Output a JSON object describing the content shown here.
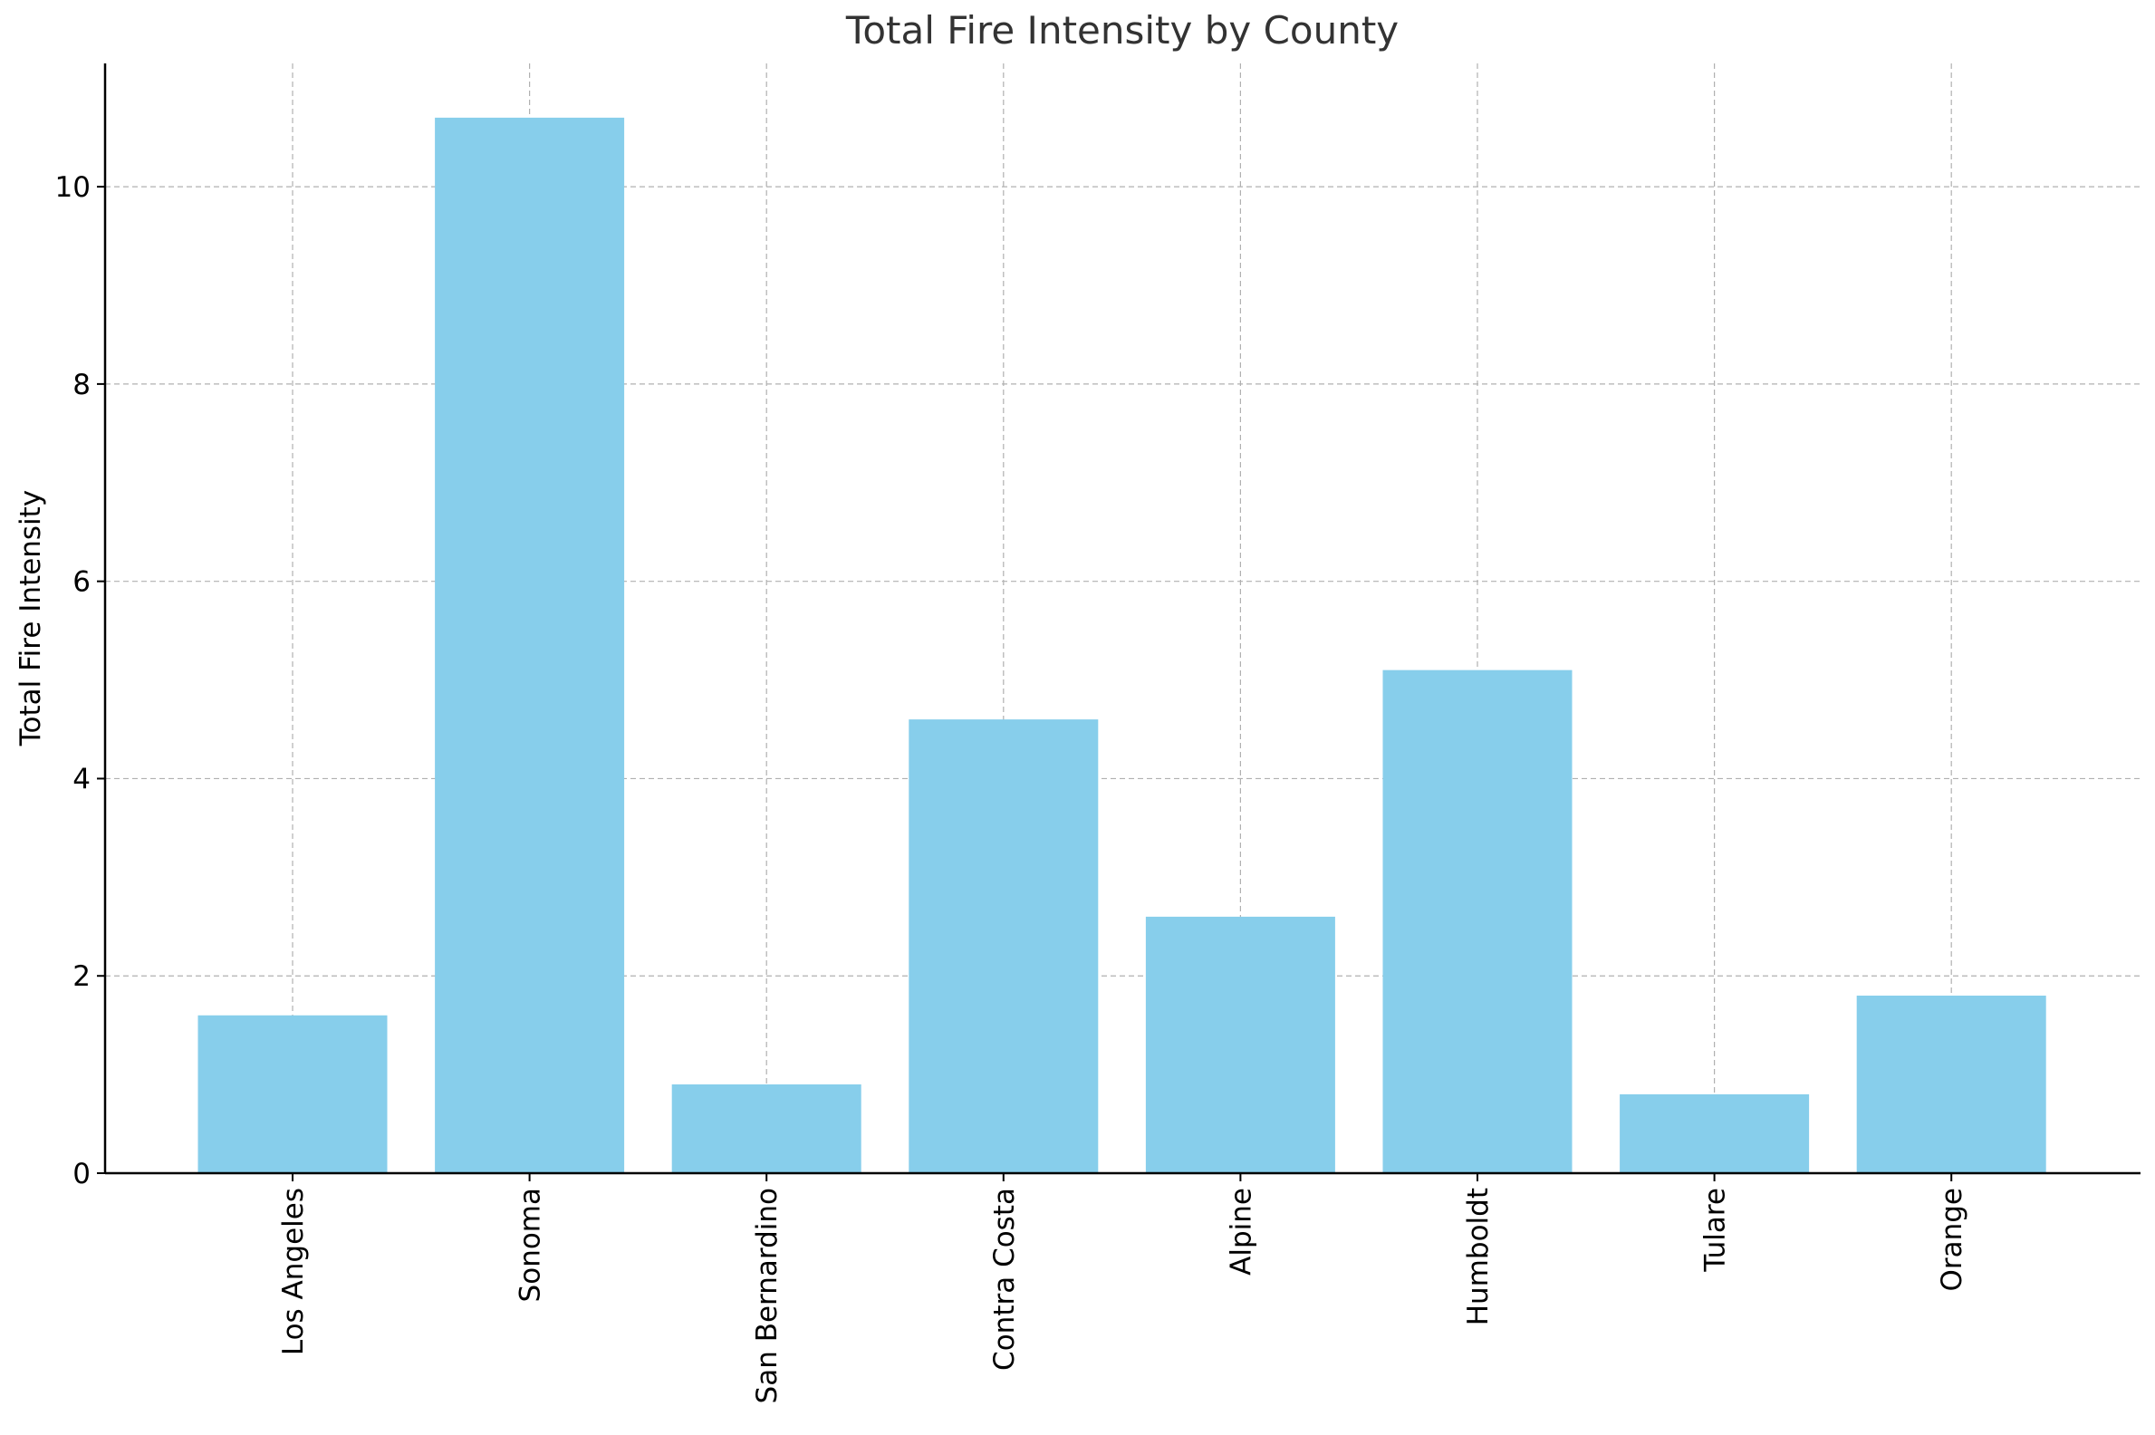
{
  "chart_data": {
    "type": "bar",
    "title": "Total Fire Intensity by County",
    "xlabel": "",
    "ylabel": "Total Fire Intensity",
    "categories": [
      "Los Angeles",
      "Sonoma",
      "San Bernardino",
      "Contra Costa",
      "Alpine",
      "Humboldt",
      "Tulare",
      "Orange"
    ],
    "values": [
      1.6,
      10.7,
      0.9,
      4.6,
      2.6,
      5.1,
      0.8,
      1.8
    ],
    "ylim": [
      0,
      11.25
    ],
    "yticks": [
      "0",
      "2",
      "4",
      "6",
      "8",
      "10"
    ],
    "grid": true,
    "legend": "none",
    "bar_color": "#87ceeb",
    "grid_color": "#b0b0b0",
    "text_color": "#333333"
  }
}
